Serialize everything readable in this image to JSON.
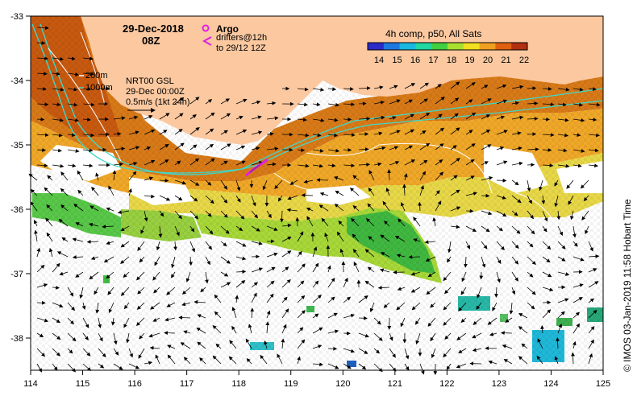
{
  "map": {
    "date": "29-Dec-2018",
    "hour": "08Z",
    "argo_label": "Argo",
    "drifters_line1": "drifters@12h",
    "drifters_line2": "to 29/12 12Z",
    "composite_title": "4h comp, p50, All Sats",
    "colorbar": {
      "ticks": [
        "14",
        "15",
        "16",
        "17",
        "18",
        "19",
        "20",
        "21",
        "22"
      ],
      "colors": [
        "#2b2bc8",
        "#1f78e0",
        "#18b8e0",
        "#20d8a0",
        "#40d040",
        "#a8e030",
        "#f0e020",
        "#f0a020",
        "#e06010",
        "#b03010"
      ]
    },
    "contour_200": "200m",
    "contour_1000": "1000m",
    "nrt_label": "NRT00 GSL",
    "nrt_date": "29-Dec 00:00Z",
    "vector_scale": "0.5m/s (1kt 24h)",
    "credit": "© IMOS 03-Jan-2019 11:58 Hobart Time",
    "x_ticks": [
      "114",
      "115",
      "116",
      "117",
      "118",
      "119",
      "120",
      "121",
      "122",
      "123",
      "124",
      "125"
    ],
    "y_ticks": [
      "-33",
      "-34",
      "-35",
      "-36",
      "-37",
      "-38"
    ],
    "land_color": "#fbc8a0"
  }
}
